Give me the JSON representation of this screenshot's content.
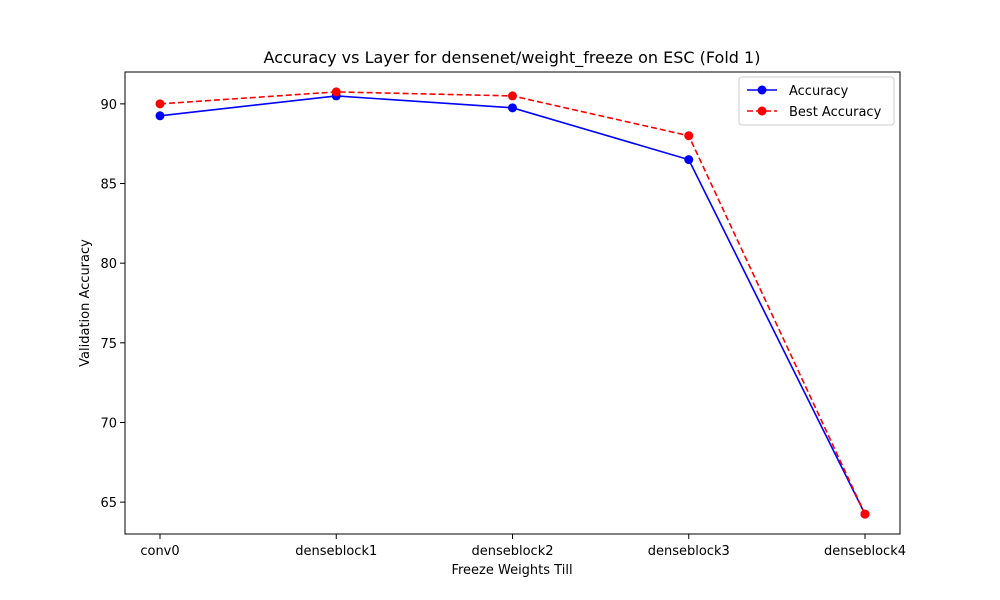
{
  "chart_data": {
    "type": "line",
    "title": "Accuracy vs Layer for densenet/weight_freeze on ESC (Fold 1)",
    "xlabel": "Freeze Weights Till",
    "ylabel": "Validation Accuracy",
    "categories": [
      "conv0",
      "denseblock1",
      "denseblock2",
      "denseblock3",
      "denseblock4"
    ],
    "ylim": [
      63.0,
      92.0
    ],
    "yticks": [
      65,
      70,
      75,
      80,
      85,
      90
    ],
    "grid": false,
    "legend_position": "top-right",
    "series": [
      {
        "name": "Accuracy",
        "values": [
          89.25,
          90.5,
          89.75,
          86.5,
          64.25
        ],
        "color": "#0000ff",
        "line_style": "solid",
        "marker": "circle"
      },
      {
        "name": "Best Accuracy",
        "values": [
          90.0,
          90.75,
          90.5,
          88.0,
          64.25
        ],
        "color": "#ff0000",
        "line_style": "dashed",
        "marker": "circle"
      }
    ]
  }
}
